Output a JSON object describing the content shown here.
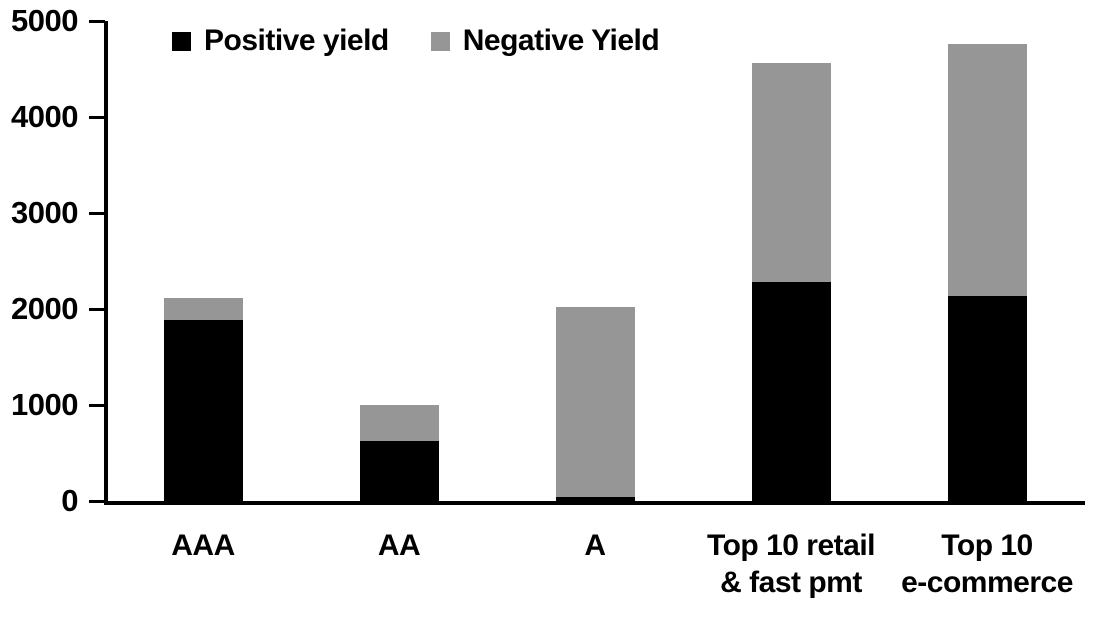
{
  "chart_data": {
    "type": "bar",
    "stacked": true,
    "title": "",
    "xlabel": "",
    "ylabel": "",
    "categories": [
      "AAA",
      "AA",
      "A",
      "Top 10 retail\n& fast pmt",
      "Top 10\ne-commerce"
    ],
    "series": [
      {
        "name": "Positive yield",
        "color": "#000000",
        "values": [
          1890,
          620,
          45,
          2280,
          2140
        ]
      },
      {
        "name": "Negative Yield",
        "color": "#969696",
        "values": [
          220,
          380,
          1975,
          2280,
          2620
        ]
      }
    ],
    "stack_totals": [
      2110,
      1000,
      2020,
      4560,
      4760
    ],
    "ylim": [
      0,
      5000
    ],
    "ytick_interval": 1000,
    "ytick_labels": [
      "0",
      "1000",
      "2000",
      "3000",
      "4000",
      "5000"
    ],
    "legend_position": "top",
    "grid": false,
    "axis_color": "#000000",
    "background_color": "#ffffff"
  }
}
